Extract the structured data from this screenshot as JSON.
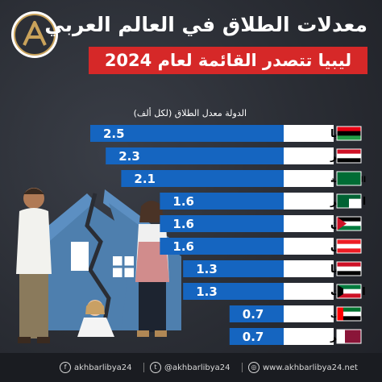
{
  "header": {
    "title": "معدلات الطلاق في العالم العربي",
    "subtitle": "ليبيا تتصدر القائمة لعام 2024"
  },
  "legend": {
    "columns": "الدولة معدل الطلاق (لكل ألف)"
  },
  "chart_data": {
    "type": "bar",
    "orientation": "horizontal",
    "title": "معدلات الطلاق في العالم العربي",
    "subtitle": "ليبيا تتصدر القائمة لعام 2024",
    "ylabel": "الدولة معدل الطلاق (لكل ألف)",
    "categories": [
      "ليبيا",
      "مصر",
      "السعودية",
      "الجزائر",
      "الأردن",
      "لبنان",
      "سوريا",
      "الكويت",
      "الإمارات",
      "قطر"
    ],
    "values": [
      2.5,
      2.3,
      2.1,
      1.6,
      1.6,
      1.6,
      1.3,
      1.3,
      0.7,
      0.7
    ],
    "value_labels": [
      "2.5",
      "2.3",
      "2.1",
      "1.6",
      "1.6",
      "1.6",
      "1.3",
      "1.3",
      "0.7",
      "0.7"
    ],
    "bar_color": "#1565c0",
    "label_color": "#ffffff",
    "value_label_background": "#ffffff",
    "value_label_color": "#000000"
  },
  "flags": [
    "libya-flag-icon",
    "egypt-flag-icon",
    "saudi-flag-icon",
    "algeria-flag-icon",
    "jordan-flag-icon",
    "lebanon-flag-icon",
    "syria-flag-icon",
    "kuwait-flag-icon",
    "uae-flag-icon",
    "qatar-flag-icon"
  ],
  "footer": {
    "facebook": "akhbarlibya24",
    "twitter": "@akhbarlibya24",
    "website": "www.akhbarlibya24.net"
  },
  "colors": {
    "background": "#2c2f36",
    "accent_red": "#d62828",
    "bar_blue": "#1565c0",
    "footer_bg": "#1a1c21"
  }
}
